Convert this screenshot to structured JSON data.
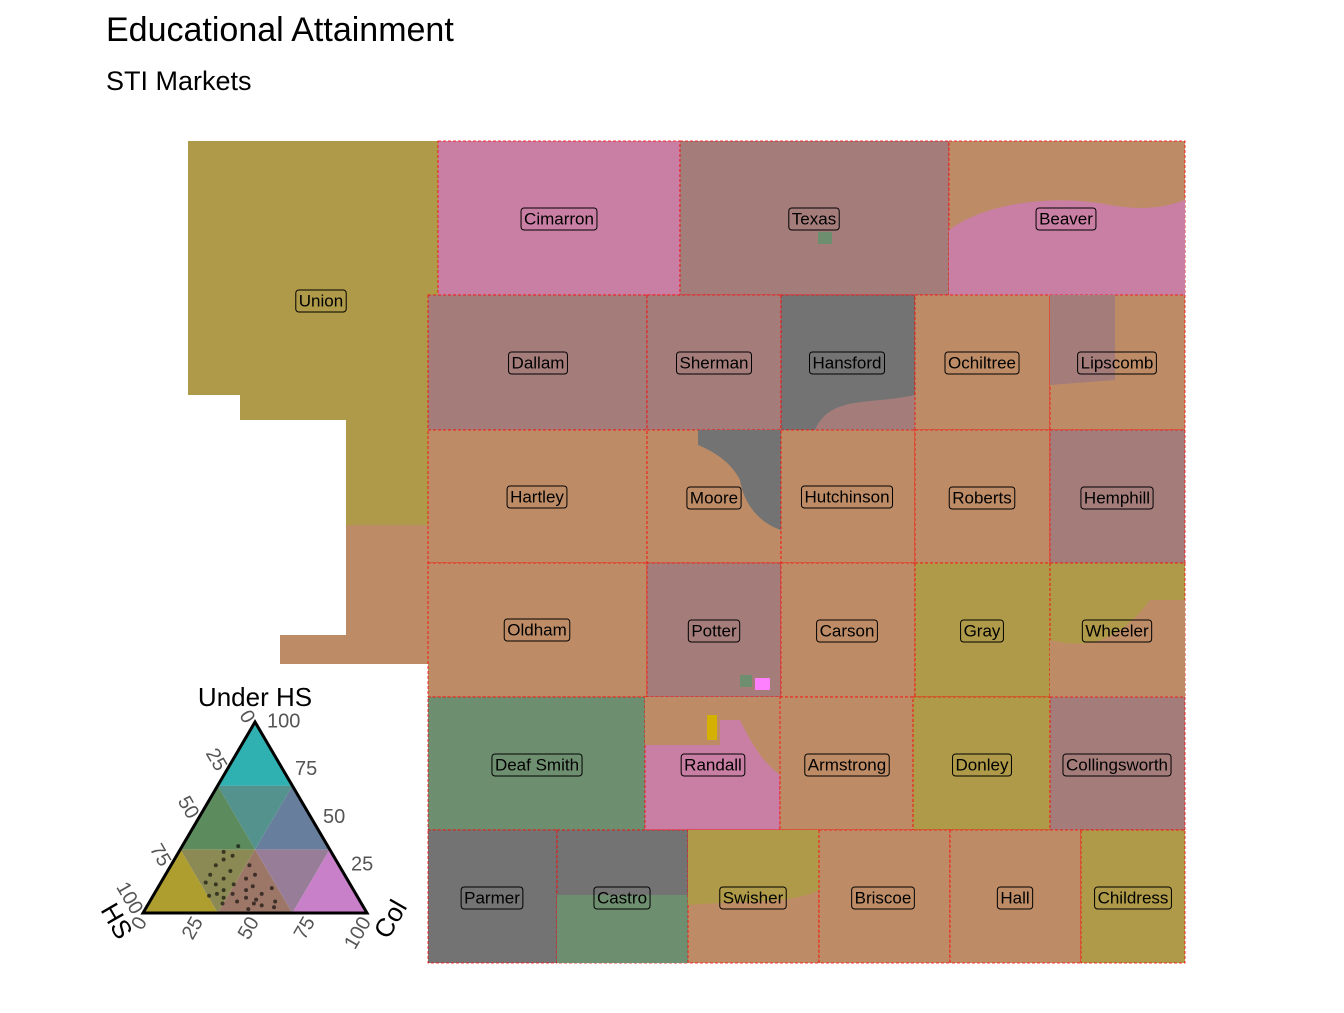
{
  "header": {
    "title": "Educational Attainment",
    "subtitle": "STI Markets"
  },
  "counties": [
    "Union",
    "Cimarron",
    "Texas",
    "Beaver",
    "Dallam",
    "Sherman",
    "Hansford",
    "Ochiltree",
    "Lipscomb",
    "Hartley",
    "Moore",
    "Hutchinson",
    "Roberts",
    "Hemphill",
    "Oldham",
    "Potter",
    "Carson",
    "Gray",
    "Wheeler",
    "Deaf Smith",
    "Randall",
    "Armstrong",
    "Donley",
    "Collingsworth",
    "Parmer",
    "Castro",
    "Swisher",
    "Briscoe",
    "Hall",
    "Childress"
  ],
  "legend": {
    "under_hs_label": "Under HS",
    "hs_label": "HS",
    "col_label": "Col",
    "colors": {
      "under_hs": "#00d0d8",
      "hs": "#d4b000",
      "col": "#ff80ff"
    },
    "under_hs_ticks": [
      25,
      50,
      75,
      100
    ],
    "hs_ticks": [
      0,
      25,
      50,
      75,
      100
    ],
    "col_ticks": [
      0,
      25,
      50,
      75,
      100
    ],
    "points": [
      [
        30,
        45,
        25
      ],
      [
        28,
        50,
        22
      ],
      [
        25,
        55,
        20
      ],
      [
        22,
        50,
        28
      ],
      [
        20,
        60,
        20
      ],
      [
        18,
        55,
        27
      ],
      [
        15,
        60,
        25
      ],
      [
        15,
        52,
        33
      ],
      [
        12,
        58,
        30
      ],
      [
        10,
        62,
        28
      ],
      [
        10,
        55,
        35
      ],
      [
        8,
        60,
        32
      ],
      [
        8,
        50,
        42
      ],
      [
        6,
        55,
        39
      ],
      [
        5,
        62,
        33
      ],
      [
        5,
        48,
        47
      ],
      [
        12,
        48,
        40
      ],
      [
        18,
        45,
        37
      ],
      [
        20,
        40,
        40
      ],
      [
        14,
        44,
        42
      ],
      [
        4,
        45,
        51
      ],
      [
        3,
        40,
        57
      ],
      [
        6,
        38,
        56
      ],
      [
        10,
        42,
        48
      ],
      [
        25,
        40,
        35
      ],
      [
        35,
        40,
        25
      ],
      [
        32,
        48,
        20
      ],
      [
        16,
        64,
        20
      ],
      [
        9,
        66,
        25
      ],
      [
        2,
        52,
        46
      ],
      [
        7,
        46,
        47
      ],
      [
        13,
        36,
        51
      ]
    ]
  }
}
